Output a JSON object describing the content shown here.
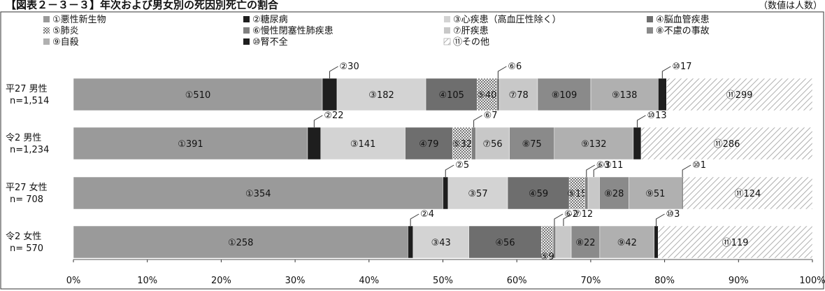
{
  "header": {
    "title": "【図表２－３－３】年次および男女別の死因別死亡の割合",
    "unit": "（数値は人数）"
  },
  "chart_data": {
    "type": "bar",
    "orientation": "horizontal",
    "stacked": "percent",
    "xlim": [
      0,
      100
    ],
    "x_ticks": [
      "0%",
      "10%",
      "20%",
      "30%",
      "40%",
      "50%",
      "60%",
      "70%",
      "80%",
      "90%",
      "100%"
    ],
    "grid": false,
    "legend_position": "top",
    "categories": [
      {
        "line1": "平27 男性",
        "line2": "n=1,514"
      },
      {
        "line1": "令2 男性",
        "line2": "n=1,234"
      },
      {
        "line1": "平27 女性",
        "line2": "n= 708"
      },
      {
        "line1": "令2 女性",
        "line2": "n= 570"
      }
    ],
    "series": [
      {
        "name": "①悪性新生物",
        "tag": "①",
        "color": "#9a9a9a",
        "fill": "solid",
        "text_color": "#111111",
        "values": [
          510,
          391,
          354,
          258
        ]
      },
      {
        "name": "②糖尿病",
        "tag": "②",
        "color": "#1e1e1e",
        "fill": "solid",
        "text_color": "#ffffff",
        "values": [
          30,
          22,
          5,
          4
        ]
      },
      {
        "name": "③心疾患（高血圧性除く）",
        "tag": "③",
        "color": "#d3d3d3",
        "fill": "solid",
        "text_color": "#111111",
        "values": [
          182,
          141,
          57,
          43
        ]
      },
      {
        "name": "④脳血管疾患",
        "tag": "④",
        "color": "#6e6e6e",
        "fill": "solid",
        "text_color": "#111111",
        "values": [
          105,
          79,
          59,
          56
        ]
      },
      {
        "name": "⑤肺炎",
        "tag": "⑤",
        "color": "#bdbdbd",
        "fill": "dots",
        "text_color": "#111111",
        "values": [
          40,
          32,
          15,
          9
        ]
      },
      {
        "name": "⑥慢性閉塞性肺疾患",
        "tag": "⑥",
        "color": "#808080",
        "fill": "solid",
        "text_color": "#111111",
        "values": [
          6,
          7,
          3,
          2
        ]
      },
      {
        "name": "⑦肝疾患",
        "tag": "⑦",
        "color": "#c8c8c8",
        "fill": "solid",
        "text_color": "#111111",
        "values": [
          78,
          56,
          11,
          12
        ]
      },
      {
        "name": "⑧不慮の事故",
        "tag": "⑧",
        "color": "#8a8a8a",
        "fill": "solid",
        "text_color": "#111111",
        "values": [
          109,
          75,
          28,
          22
        ]
      },
      {
        "name": "⑨自殺",
        "tag": "⑨",
        "color": "#b0b0b0",
        "fill": "solid",
        "text_color": "#111111",
        "values": [
          138,
          132,
          51,
          42
        ]
      },
      {
        "name": "⑩腎不全",
        "tag": "⑩",
        "color": "#1e1e1e",
        "fill": "solid",
        "text_color": "#ffffff",
        "values": [
          17,
          13,
          1,
          3
        ]
      },
      {
        "name": "⑪その他",
        "tag": "⑪",
        "color": "#ffffff",
        "fill": "hatch",
        "text_color": "#111111",
        "values": [
          299,
          286,
          124,
          119
        ]
      }
    ],
    "callouts": [
      {
        "row": 0,
        "series": 1,
        "label": "②30"
      },
      {
        "row": 0,
        "series": 5,
        "label": "⑥6"
      },
      {
        "row": 0,
        "series": 9,
        "label": "⑩17"
      },
      {
        "row": 1,
        "series": 1,
        "label": "②22"
      },
      {
        "row": 1,
        "series": 5,
        "label": "⑥7"
      },
      {
        "row": 1,
        "series": 9,
        "label": "⑩13"
      },
      {
        "row": 2,
        "series": 1,
        "label": "②5"
      },
      {
        "row": 2,
        "series": 5,
        "label": "⑥3"
      },
      {
        "row": 2,
        "series": 6,
        "label": "⑦11"
      },
      {
        "row": 2,
        "series": 9,
        "label": "⑩1"
      },
      {
        "row": 3,
        "series": 1,
        "label": "②4"
      },
      {
        "row": 3,
        "series": 5,
        "label": "⑥2"
      },
      {
        "row": 3,
        "series": 6,
        "label": "⑦12"
      },
      {
        "row": 3,
        "series": 9,
        "label": "⑩3"
      }
    ],
    "below_labels": [
      {
        "row": 3,
        "series": 4,
        "label": "⑤9"
      }
    ],
    "inline_labels": [
      [
        "①510",
        null,
        "③182",
        "④105",
        "⑤40",
        null,
        "⑦78",
        "⑧109",
        "⑨138",
        null,
        "⑪299"
      ],
      [
        "①391",
        null,
        "③141",
        "④79",
        "⑤32",
        null,
        "⑦56",
        "⑧75",
        "⑨132",
        null,
        "⑪286"
      ],
      [
        "①354",
        null,
        "③57",
        "④59",
        "⑤15",
        null,
        null,
        "⑧28",
        "⑨51",
        null,
        "⑪124"
      ],
      [
        "①258",
        null,
        "③43",
        "④56",
        null,
        null,
        null,
        "⑧22",
        "⑨42",
        null,
        "⑪119"
      ]
    ]
  }
}
